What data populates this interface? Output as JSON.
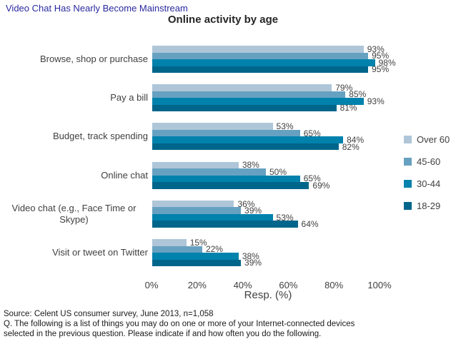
{
  "headline": {
    "text": "Video Chat Has Nearly Become Mainstream"
  },
  "chart_data": {
    "type": "bar",
    "orientation": "horizontal",
    "title": "Online activity by age",
    "xlabel": "Resp. (%)",
    "xlim": [
      0,
      100
    ],
    "x_ticks": [
      "0%",
      "20%",
      "40%",
      "60%",
      "80%",
      "100%"
    ],
    "grid": false,
    "legend_position": "right",
    "value_suffix": "%",
    "categories": [
      "Browse, shop or purchase",
      "Pay a bill",
      "Budget, track spending",
      "Online chat",
      "Video chat (e.g., Face Time or Skype)",
      "Visit or tweet on Twitter"
    ],
    "series": [
      {
        "name": "Over 60",
        "color": "#aec6d8",
        "values": [
          93,
          79,
          53,
          38,
          36,
          15
        ]
      },
      {
        "name": "45-60",
        "color": "#67a1c1",
        "values": [
          95,
          85,
          65,
          50,
          39,
          22
        ]
      },
      {
        "name": "30-44",
        "color": "#0082ad",
        "values": [
          98,
          93,
          84,
          65,
          53,
          38
        ]
      },
      {
        "name": "18-29",
        "color": "#00658a",
        "values": [
          95,
          81,
          82,
          69,
          64,
          39
        ]
      }
    ]
  },
  "footer": {
    "source": "Source: Celent US consumer survey, June 2013, n=1,058",
    "question_lines": [
      "Q. The following is a list of things you may do on one or more of your Internet-connected devices",
      "selected in the previous question. Please indicate if and how often you do the following."
    ]
  }
}
